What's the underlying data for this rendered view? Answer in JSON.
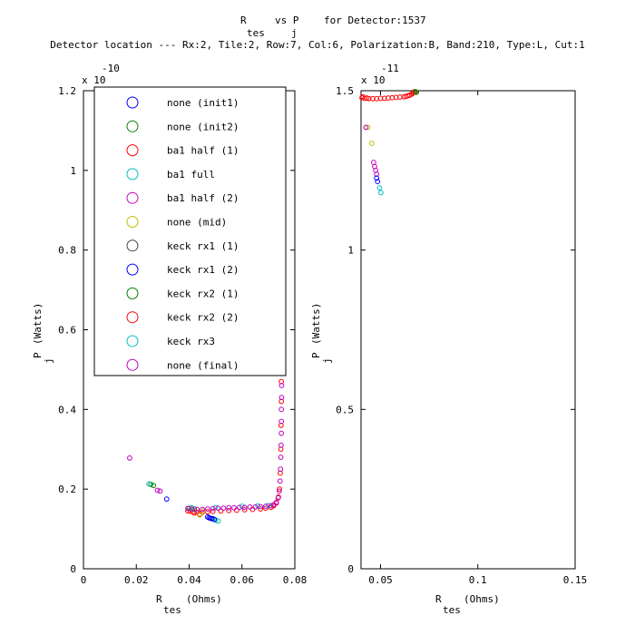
{
  "title": {
    "line1_a": "R",
    "line1_b": "vs P",
    "line1_c": "for Detector:1537",
    "sub_tes": "tes",
    "sub_j": "j",
    "line2": "Detector location --- Rx:2, Tile:2, Row:7, Col:6, Polarization:B, Band:210, Type:L, Cut:1"
  },
  "colors": {
    "dark_blue": "#0000ff",
    "green": "#008000",
    "red": "#ff0000",
    "cyan": "#00bfbf",
    "magenta": "#bf00bf",
    "olive": "#bfbf00",
    "gray": "#404040"
  },
  "chart_data": [
    {
      "type": "scatter",
      "panel": "left",
      "xlabel": "R",
      "xlabel_sub": "tes",
      "xlabel_unit": "(Ohms)",
      "ylabel": "P",
      "ylabel_sub": "j",
      "ylabel_unit": "(Watts)",
      "y_exponent_label": "x 10",
      "y_exponent": "-10",
      "xlim": [
        0,
        0.08
      ],
      "ylim": [
        0,
        1.2
      ],
      "x_ticks": [
        0,
        0.02,
        0.04,
        0.06,
        0.08
      ],
      "x_tick_labels": [
        "0",
        "0.02",
        "0.04",
        "0.06",
        "0.08"
      ],
      "y_ticks": [
        0,
        0.2,
        0.4,
        0.6,
        0.8,
        1,
        1.2
      ],
      "y_tick_labels": [
        "0",
        "0.2",
        "0.4",
        "0.6",
        "0.8",
        "1",
        "1.2"
      ],
      "grid": false,
      "legend_position": "top-right",
      "legend": [
        {
          "label": "none (init1)",
          "color": "#0000ff"
        },
        {
          "label": "none (init2)",
          "color": "#008000"
        },
        {
          "label": "ba1 half (1)",
          "color": "#ff0000"
        },
        {
          "label": "ba1 full",
          "color": "#00bfbf"
        },
        {
          "label": "ba1 half (2)",
          "color": "#bf00bf"
        },
        {
          "label": "none (mid)",
          "color": "#bfbf00"
        },
        {
          "label": "keck rx1 (1)",
          "color": "#404040"
        },
        {
          "label": "keck rx1 (2)",
          "color": "#0000ff"
        },
        {
          "label": "keck rx2 (1)",
          "color": "#008000"
        },
        {
          "label": "keck rx2 (2)",
          "color": "#ff0000"
        },
        {
          "label": "keck rx3",
          "color": "#00bfbf"
        },
        {
          "label": "none (final)",
          "color": "#bf00bf"
        }
      ],
      "series": [
        {
          "color": "#ff0000",
          "points": [
            [
              0.0395,
              0.145
            ],
            [
              0.0405,
              0.144
            ],
            [
              0.0415,
              0.143
            ],
            [
              0.043,
              0.142
            ],
            [
              0.045,
              0.142
            ],
            [
              0.047,
              0.143
            ],
            [
              0.049,
              0.144
            ],
            [
              0.052,
              0.145
            ],
            [
              0.055,
              0.146
            ],
            [
              0.058,
              0.147
            ],
            [
              0.061,
              0.148
            ],
            [
              0.064,
              0.149
            ],
            [
              0.067,
              0.15
            ],
            [
              0.069,
              0.152
            ],
            [
              0.071,
              0.154
            ],
            [
              0.072,
              0.158
            ],
            [
              0.073,
              0.165
            ],
            [
              0.0738,
              0.18
            ],
            [
              0.0742,
              0.2
            ],
            [
              0.0745,
              0.24
            ],
            [
              0.0747,
              0.3
            ],
            [
              0.0748,
              0.36
            ],
            [
              0.0749,
              0.42
            ],
            [
              0.0749,
              0.47
            ],
            [
              0.042,
              0.14
            ],
            [
              0.044,
              0.137
            ]
          ]
        },
        {
          "color": "#008000",
          "points": [
            [
              0.04,
              0.152
            ],
            [
              0.042,
              0.15
            ],
            [
              0.0255,
              0.212
            ],
            [
              0.0265,
              0.209
            ],
            [
              0.049,
              0.126
            ]
          ]
        },
        {
          "color": "#00bfbf",
          "points": [
            [
              0.041,
              0.153
            ],
            [
              0.05,
              0.154
            ],
            [
              0.06,
              0.157
            ],
            [
              0.066,
              0.158
            ],
            [
              0.07,
              0.159
            ],
            [
              0.0248,
              0.213
            ],
            [
              0.051,
              0.12
            ],
            [
              0.05,
              0.122
            ],
            [
              0.0495,
              0.124
            ]
          ]
        },
        {
          "color": "#0000ff",
          "points": [
            [
              0.0315,
              0.175
            ],
            [
              0.047,
              0.13
            ],
            [
              0.0475,
              0.128
            ],
            [
              0.048,
              0.127
            ],
            [
              0.0485,
              0.126
            ],
            [
              0.0495,
              0.124
            ]
          ]
        },
        {
          "color": "#bfbf00",
          "points": [
            [
              0.044,
              0.135
            ],
            [
              0.0455,
              0.147
            ]
          ]
        },
        {
          "color": "#bf00bf",
          "points": [
            [
              0.0175,
              0.278
            ],
            [
              0.028,
              0.197
            ],
            [
              0.029,
              0.195
            ],
            [
              0.0395,
              0.151
            ],
            [
              0.041,
              0.15
            ],
            [
              0.043,
              0.149
            ],
            [
              0.045,
              0.149
            ],
            [
              0.047,
              0.15
            ],
            [
              0.049,
              0.151
            ],
            [
              0.051,
              0.152
            ],
            [
              0.053,
              0.152
            ],
            [
              0.055,
              0.153
            ],
            [
              0.057,
              0.153
            ],
            [
              0.059,
              0.154
            ],
            [
              0.061,
              0.154
            ],
            [
              0.063,
              0.155
            ],
            [
              0.065,
              0.155
            ],
            [
              0.067,
              0.156
            ],
            [
              0.069,
              0.157
            ],
            [
              0.071,
              0.158
            ],
            [
              0.072,
              0.161
            ],
            [
              0.073,
              0.167
            ],
            [
              0.0737,
              0.178
            ],
            [
              0.0741,
              0.195
            ],
            [
              0.0744,
              0.22
            ],
            [
              0.0746,
              0.25
            ],
            [
              0.0747,
              0.28
            ],
            [
              0.0748,
              0.31
            ],
            [
              0.0749,
              0.34
            ],
            [
              0.0749,
              0.37
            ],
            [
              0.0749,
              0.4
            ],
            [
              0.075,
              0.43
            ],
            [
              0.075,
              0.46
            ],
            [
              0.075,
              0.49
            ]
          ]
        }
      ]
    },
    {
      "type": "scatter",
      "panel": "right",
      "xlabel": "R",
      "xlabel_sub": "tes",
      "xlabel_unit": "(Ohms)",
      "ylabel": "P",
      "ylabel_sub": "j",
      "ylabel_unit": "(Watts)",
      "y_exponent_label": "x 10",
      "y_exponent": "-11",
      "xlim": [
        0.04,
        0.15
      ],
      "ylim": [
        0,
        1.5
      ],
      "x_ticks": [
        0.05,
        0.1,
        0.15
      ],
      "x_tick_labels": [
        "0.05",
        "0.1",
        "0.15"
      ],
      "y_ticks": [
        0,
        0.5,
        1,
        1.5
      ],
      "y_tick_labels": [
        "0",
        "0.5",
        "1",
        "1.5"
      ],
      "grid": false,
      "series": [
        {
          "color": "#ff0000",
          "points": [
            [
              0.0405,
              1.478
            ],
            [
              0.042,
              1.476
            ],
            [
              0.044,
              1.475
            ],
            [
              0.046,
              1.475
            ],
            [
              0.048,
              1.475
            ],
            [
              0.05,
              1.476
            ],
            [
              0.052,
              1.476
            ],
            [
              0.054,
              1.477
            ],
            [
              0.056,
              1.478
            ],
            [
              0.058,
              1.479
            ],
            [
              0.06,
              1.48
            ],
            [
              0.062,
              1.481
            ],
            [
              0.063,
              1.482
            ],
            [
              0.064,
              1.484
            ],
            [
              0.065,
              1.486
            ],
            [
              0.066,
              1.489
            ],
            [
              0.0665,
              1.492
            ],
            [
              0.067,
              1.495
            ],
            [
              0.0675,
              1.497
            ],
            [
              0.041,
              1.481
            ],
            [
              0.043,
              1.477
            ]
          ]
        },
        {
          "color": "#008000",
          "points": [
            [
              0.068,
              1.497
            ],
            [
              0.0685,
              1.495
            ]
          ]
        },
        {
          "color": "#bfbf00",
          "points": [
            [
              0.0435,
              1.385
            ],
            [
              0.0455,
              1.335
            ]
          ]
        },
        {
          "color": "#bf00bf",
          "points": [
            [
              0.0425,
              1.385
            ],
            [
              0.0465,
              1.275
            ],
            [
              0.047,
              1.262
            ],
            [
              0.0475,
              1.25
            ],
            [
              0.048,
              1.238
            ]
          ]
        },
        {
          "color": "#0000ff",
          "points": [
            [
              0.048,
              1.226
            ],
            [
              0.0485,
              1.215
            ]
          ]
        },
        {
          "color": "#00bfbf",
          "points": [
            [
              0.0495,
              1.195
            ],
            [
              0.0502,
              1.18
            ]
          ]
        }
      ]
    }
  ]
}
